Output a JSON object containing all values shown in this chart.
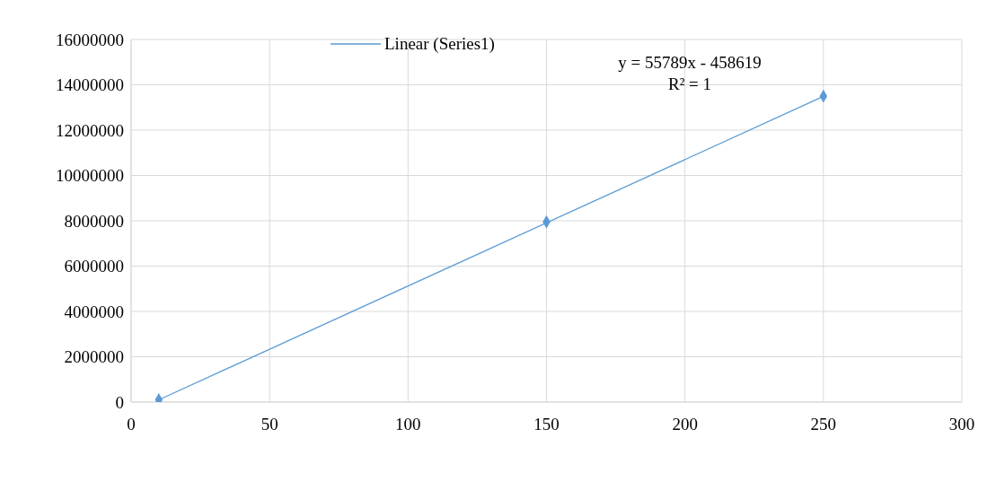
{
  "chart_data": {
    "type": "scatter",
    "x": [
      10,
      150,
      250
    ],
    "series": [
      {
        "color": "#5b9bd5",
        "marker": "diamond",
        "values": [
          100000,
          7950000,
          13500000
        ]
      },
      {
        "type": "line",
        "name": "Linear (Series1)",
        "color": "#5b9bd5",
        "x": [
          10,
          250
        ],
        "values": [
          100000,
          13490000
        ]
      }
    ],
    "xlim": [
      0,
      300
    ],
    "xticks": [
      0,
      50,
      100,
      150,
      200,
      250,
      300
    ],
    "ylim": [
      0,
      16000000
    ],
    "yticks": [
      0,
      2000000,
      4000000,
      6000000,
      8000000,
      10000000,
      12000000,
      14000000,
      16000000
    ],
    "grid": true,
    "legend": "top",
    "annotations": [
      "y = 55789x - 458619",
      "R² = 1"
    ]
  }
}
